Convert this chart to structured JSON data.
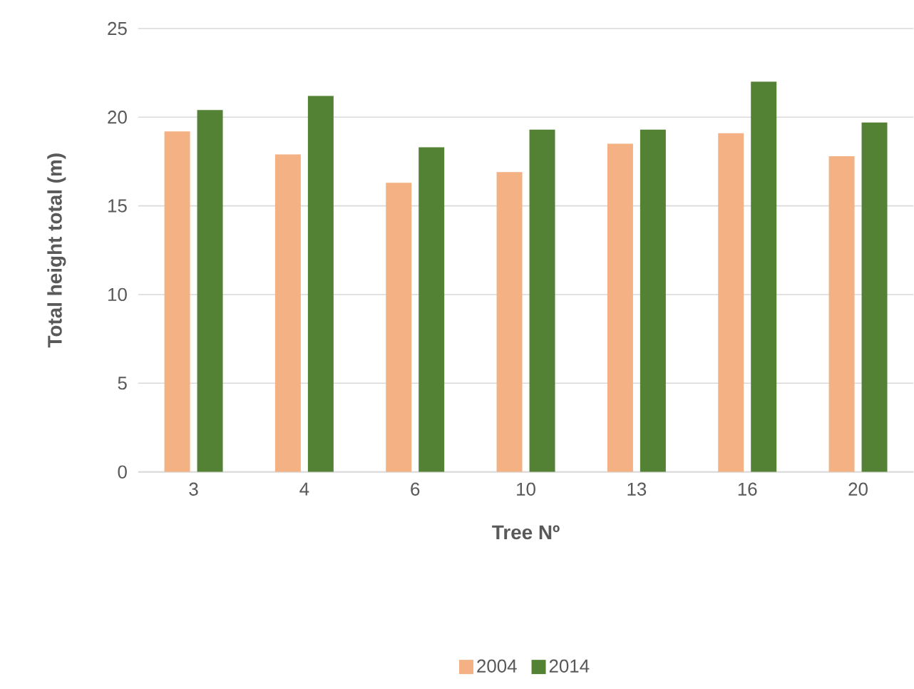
{
  "chart_data": {
    "type": "bar",
    "xlabel": "Tree Nº",
    "ylabel": "Total height total (m)",
    "categories": [
      "3",
      "4",
      "6",
      "10",
      "13",
      "16",
      "20"
    ],
    "series": [
      {
        "name": "2004",
        "color": "#f4b183",
        "values": [
          19.2,
          17.9,
          16.3,
          16.9,
          18.5,
          19.1,
          17.8
        ]
      },
      {
        "name": "2014",
        "color": "#548235",
        "values": [
          20.4,
          21.2,
          18.3,
          19.3,
          19.3,
          22.0,
          19.7
        ]
      }
    ],
    "ylim": [
      0,
      25
    ],
    "yticks": [
      0,
      5,
      10,
      15,
      20,
      25
    ],
    "grid": "y",
    "legend": "bottom"
  }
}
